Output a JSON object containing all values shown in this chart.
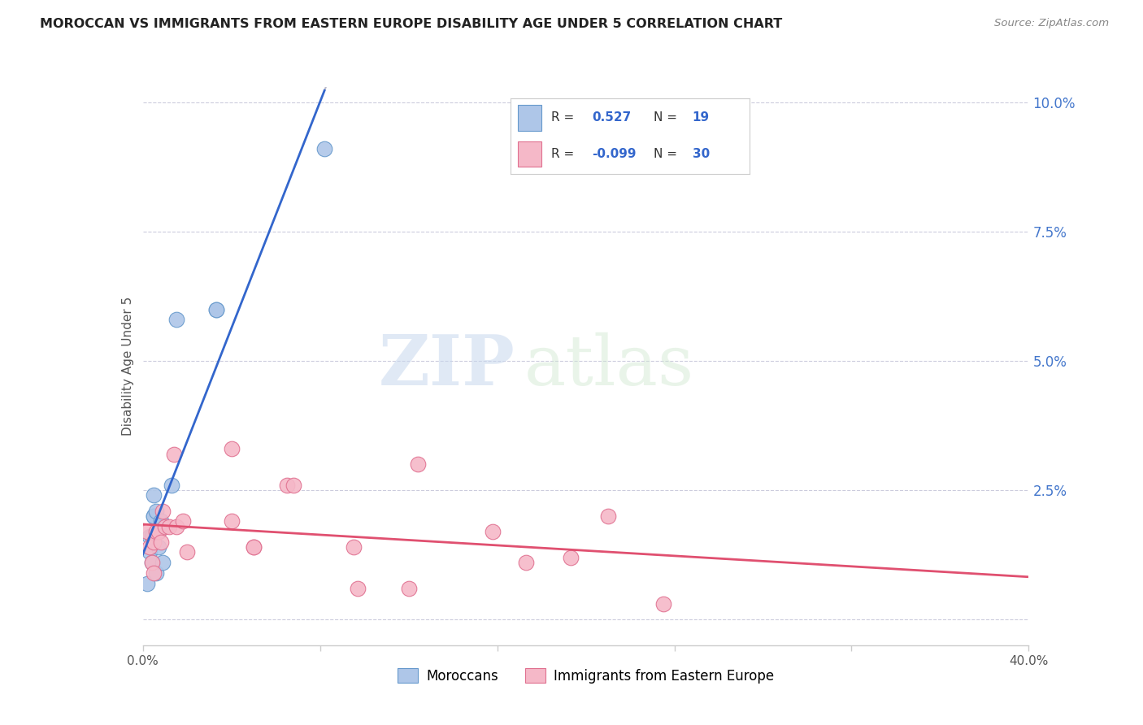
{
  "title": "MOROCCAN VS IMMIGRANTS FROM EASTERN EUROPE DISABILITY AGE UNDER 5 CORRELATION CHART",
  "source": "Source: ZipAtlas.com",
  "ylabel": "Disability Age Under 5",
  "yticks": [
    0.0,
    0.025,
    0.05,
    0.075,
    0.1
  ],
  "ytick_labels": [
    "",
    "2.5%",
    "5.0%",
    "7.5%",
    "10.0%"
  ],
  "xticks": [
    0.0,
    0.08,
    0.16,
    0.24,
    0.32,
    0.4
  ],
  "xtick_labels": [
    "0.0%",
    "",
    "",
    "",
    "",
    "40.0%"
  ],
  "xmin": 0.0,
  "xmax": 0.4,
  "ymin": -0.005,
  "ymax": 0.103,
  "moroccan_color": "#aec6e8",
  "eastern_europe_color": "#f5b8c8",
  "moroccan_edge_color": "#6699cc",
  "eastern_europe_edge_color": "#e07090",
  "trend_moroccan_color": "#3366cc",
  "trend_eastern_color": "#e05070",
  "moroccan_R": 0.527,
  "moroccan_N": 19,
  "eastern_europe_R": -0.099,
  "eastern_europe_N": 30,
  "legend_label_moroccan": "Moroccans",
  "legend_label_eastern": "Immigrants from Eastern Europe",
  "watermark_zip": "ZIP",
  "watermark_atlas": "atlas",
  "moroccan_x": [
    0.002,
    0.003,
    0.003,
    0.004,
    0.004,
    0.005,
    0.005,
    0.005,
    0.006,
    0.006,
    0.007,
    0.007,
    0.008,
    0.009,
    0.013,
    0.015,
    0.033,
    0.033,
    0.082
  ],
  "moroccan_y": [
    0.007,
    0.016,
    0.013,
    0.016,
    0.011,
    0.02,
    0.02,
    0.024,
    0.021,
    0.009,
    0.014,
    0.017,
    0.019,
    0.011,
    0.026,
    0.058,
    0.06,
    0.06,
    0.091
  ],
  "eastern_x": [
    0.002,
    0.003,
    0.004,
    0.005,
    0.005,
    0.006,
    0.007,
    0.008,
    0.009,
    0.01,
    0.012,
    0.014,
    0.015,
    0.018,
    0.02,
    0.04,
    0.04,
    0.05,
    0.05,
    0.065,
    0.068,
    0.095,
    0.097,
    0.12,
    0.124,
    0.158,
    0.173,
    0.193,
    0.21,
    0.235
  ],
  "eastern_y": [
    0.017,
    0.014,
    0.011,
    0.009,
    0.015,
    0.017,
    0.017,
    0.015,
    0.021,
    0.018,
    0.018,
    0.032,
    0.018,
    0.019,
    0.013,
    0.033,
    0.019,
    0.014,
    0.014,
    0.026,
    0.026,
    0.014,
    0.006,
    0.006,
    0.03,
    0.017,
    0.011,
    0.012,
    0.02,
    0.003
  ]
}
